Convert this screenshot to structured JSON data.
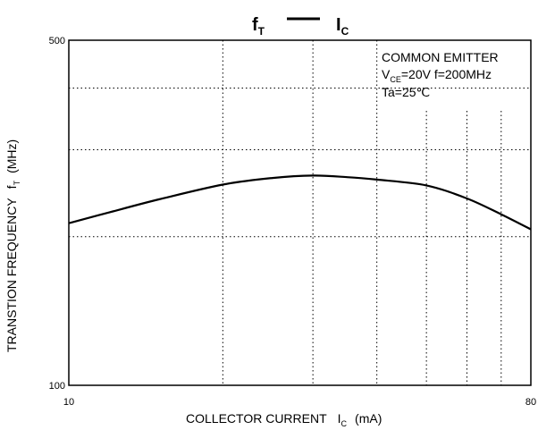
{
  "chart_data": {
    "type": "line",
    "title": {
      "left_main": "f",
      "left_sub": "T",
      "right_main": "I",
      "right_sub": "C"
    },
    "xlabel": {
      "text": "COLLECTOR CURRENT",
      "symbol": "I",
      "symbol_sub": "C",
      "unit": "(mA)"
    },
    "ylabel": {
      "text": "TRANSTION FREQUENCY",
      "symbol": "f",
      "symbol_sub": "T",
      "unit": "(MHz)"
    },
    "x_scale": "log",
    "y_scale": "log",
    "xlim": [
      10,
      80
    ],
    "ylim": [
      100,
      500
    ],
    "x_ticks": [
      {
        "value": 10,
        "label": "10"
      },
      {
        "value": 80,
        "label": "80"
      }
    ],
    "y_ticks": [
      {
        "value": 100,
        "label": "100"
      },
      {
        "value": 500,
        "label": "500"
      }
    ],
    "x_gridlines": [
      20,
      30,
      40,
      50,
      60,
      70
    ],
    "y_gridlines": [
      200,
      300,
      400
    ],
    "grid": "dotted",
    "annotation": {
      "line1": "COMMON EMITTER",
      "line2_main": "V",
      "line2_sub": "CE",
      "line2_rest": "=20V   f=200MHz",
      "line3": "Ta=25℃"
    },
    "series": [
      {
        "x": [
          10,
          12,
          15,
          20,
          25,
          30,
          35,
          40,
          50,
          60,
          70,
          80
        ],
        "y": [
          213,
          224,
          238,
          255,
          263,
          266,
          264,
          261,
          254,
          239,
          222,
          207
        ]
      }
    ],
    "colors": {
      "axes": "#000000",
      "grid": "#000000",
      "line": "#000000",
      "background": "#ffffff"
    }
  }
}
